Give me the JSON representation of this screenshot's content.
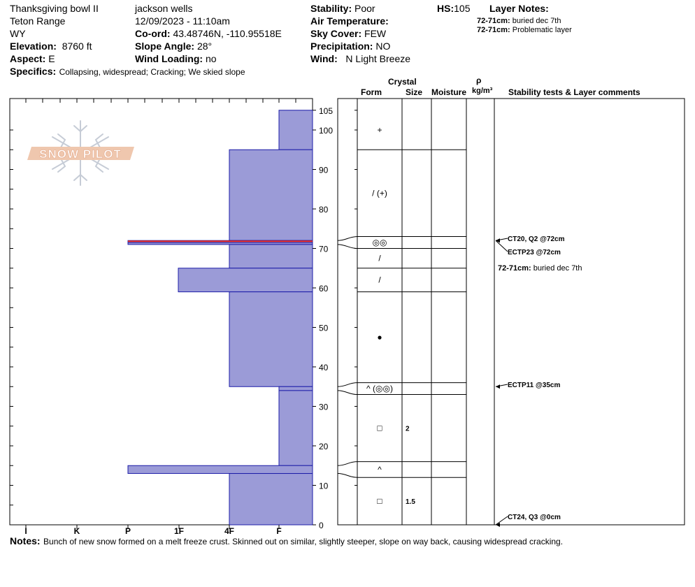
{
  "header": {
    "location": "Thanksgiving bowl II",
    "range": "Teton Range",
    "state": "WY",
    "elevation_label": "Elevation:",
    "elevation": "8760 ft",
    "aspect_label": "Aspect:",
    "aspect": "E",
    "observer": "jackson wells",
    "datetime": "12/09/2023 - 11:10am",
    "coord_label": "Co-ord:",
    "coord": "43.48746N, -110.95518E",
    "slope_label": "Slope Angle:",
    "slope": "28°",
    "wind_loading_label": "Wind Loading:",
    "wind_loading": "no",
    "stability_label": "Stability:",
    "stability": "Poor",
    "air_temp_label": "Air Temperature:",
    "sky_label": "Sky Cover:",
    "sky": "FEW",
    "precip_label": "Precipitation:",
    "precip": "NO",
    "wind_label": "Wind:",
    "wind": "N Light Breeze",
    "hs_label": "HS:",
    "hs": "105",
    "layer_notes_label": "Layer Notes:",
    "layer_notes": [
      {
        "depth": "72-71cm:",
        "text": "buried dec 7th"
      },
      {
        "depth": "72-71cm:",
        "text": "Problematic layer"
      }
    ],
    "specifics_label": "Specifics:",
    "specifics": "Collapsing, widespread;  Cracking;  We skied slope"
  },
  "logo": {
    "text": "SNOW PILOT"
  },
  "columns": {
    "crystal": "Crystal",
    "form": "Form",
    "size": "Size",
    "moisture": "Moisture",
    "rho": "ρ",
    "density_unit": "kg/m³",
    "stability_comments": "Stability tests & Layer comments"
  },
  "chart_data": {
    "type": "snow profile",
    "ylim": [
      0,
      105
    ],
    "y_ticks": [
      "0",
      "10",
      "20",
      "30",
      "40",
      "50",
      "60",
      "70",
      "80",
      "90",
      "100",
      "105"
    ],
    "hardness_scale": [
      "I",
      "K",
      "P",
      "1F",
      "4F",
      "F"
    ],
    "hardness_profile": [
      {
        "top": 105,
        "bottom": 95,
        "hardness": "F"
      },
      {
        "top": 95,
        "bottom": 72,
        "hardness": "4F"
      },
      {
        "top": 72,
        "bottom": 71,
        "hardness": "P",
        "flagged": true
      },
      {
        "top": 71,
        "bottom": 65,
        "hardness": "4F"
      },
      {
        "top": 65,
        "bottom": 59,
        "hardness": "1F+"
      },
      {
        "top": 59,
        "bottom": 35,
        "hardness": "4F"
      },
      {
        "top": 35,
        "bottom": 34,
        "hardness": "F"
      },
      {
        "top": 34,
        "bottom": 15,
        "hardness": "F"
      },
      {
        "top": 15,
        "bottom": 13,
        "hardness": "P"
      },
      {
        "top": 13,
        "bottom": 0,
        "hardness": "4F"
      }
    ],
    "layers": [
      {
        "top": 105,
        "bottom": 95,
        "form": "+",
        "size": ""
      },
      {
        "top": 95,
        "bottom": 73,
        "form": "/ (+)",
        "size": ""
      },
      {
        "top": 73,
        "bottom": 70,
        "form": "◎◎",
        "size": ""
      },
      {
        "top": 70,
        "bottom": 65,
        "form": "/",
        "size": ""
      },
      {
        "top": 65,
        "bottom": 59,
        "form": "/",
        "size": ""
      },
      {
        "top": 59,
        "bottom": 36,
        "form": "●",
        "size": ""
      },
      {
        "top": 36,
        "bottom": 33,
        "form": "^ (◎◎)",
        "size": ""
      },
      {
        "top": 33,
        "bottom": 16,
        "form": "□",
        "size": "2"
      },
      {
        "top": 16,
        "bottom": 12,
        "form": "^",
        "size": ""
      },
      {
        "top": 12,
        "bottom": 0,
        "form": "□",
        "size": "1.5"
      }
    ],
    "tests": [
      {
        "depth": 72,
        "label": "CT20, Q2 @72cm"
      },
      {
        "depth": 72,
        "label": "ECTP23 @72cm"
      },
      {
        "depth": 35,
        "label": "ECTP11 @35cm"
      },
      {
        "depth": 0,
        "label": "CT24, Q3 @0cm"
      }
    ],
    "layer_comment": {
      "depth": "72-71cm:",
      "text": "buried dec 7th"
    }
  },
  "notes_label": "Notes:",
  "notes": "Bunch of new snow formed on a melt freeze crust. Skinned out on similar, slightly steeper, slope on way back, causing widespread cracking.",
  "colors": {
    "fill": "#9b9bd7",
    "edge": "#1c1ca8",
    "flag": "#e02020"
  }
}
